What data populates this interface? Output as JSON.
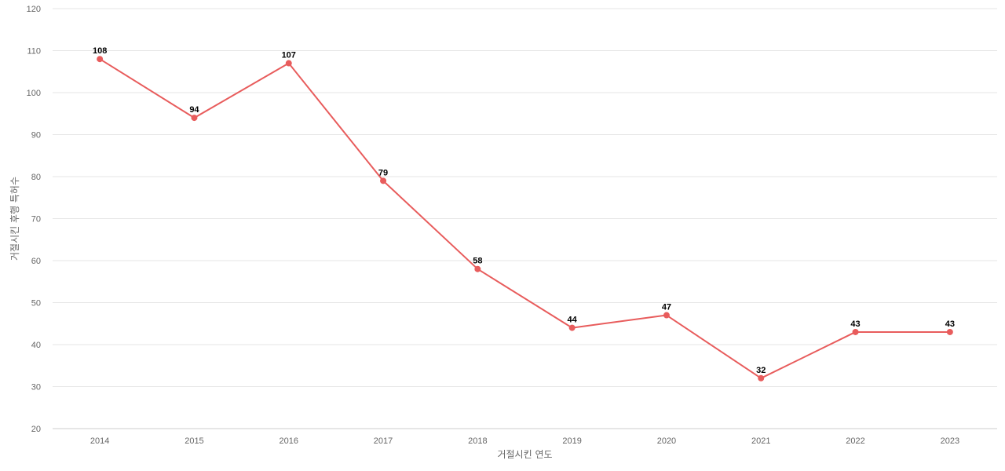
{
  "chart_data": {
    "type": "line",
    "title": "",
    "xlabel": "거절시킨 연도",
    "ylabel": "거절시킨 후행 특허수",
    "categories": [
      "2014",
      "2015",
      "2016",
      "2017",
      "2018",
      "2019",
      "2020",
      "2021",
      "2022",
      "2023"
    ],
    "series": [
      {
        "values": [
          108,
          94,
          107,
          79,
          58,
          44,
          47,
          32,
          43,
          43
        ],
        "color": "#e85c5c"
      }
    ],
    "ylim": [
      20,
      120
    ],
    "yticks": [
      20,
      30,
      40,
      50,
      60,
      70,
      80,
      90,
      100,
      110,
      120
    ],
    "grid": true,
    "legend": "none",
    "data_labels": true
  }
}
